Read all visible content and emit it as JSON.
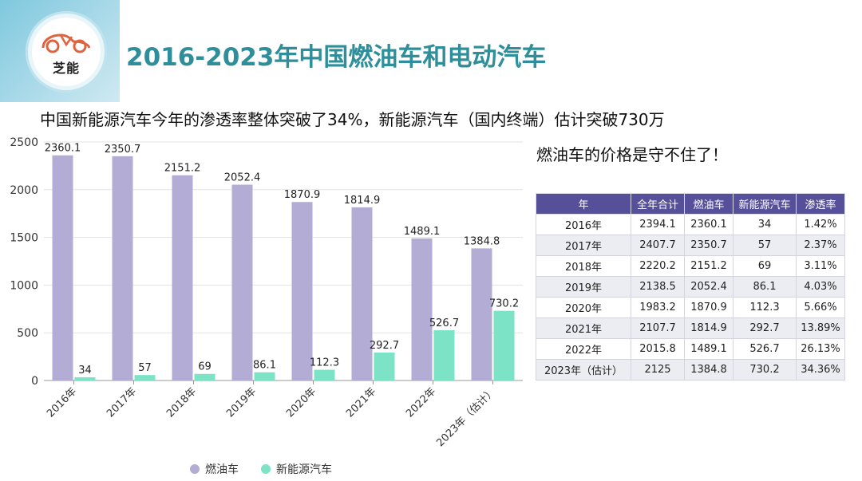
{
  "header": {
    "logo_text": "芝能",
    "title": "2016-2023年中国燃油车和电动汽车"
  },
  "subtitles": {
    "line1": "中国新能源汽车今年的渗透率整体突破了34%，新能源汽车（国内终端）估计突破730万",
    "line2": "燃油车的价格是守不住了！"
  },
  "colors": {
    "title": "#2e8f9b",
    "fuel": "#b3add6",
    "ev": "#7ce3c6",
    "table_header": "#56509a"
  },
  "chart_data": {
    "type": "bar",
    "categories": [
      "2016年",
      "2017年",
      "2018年",
      "2019年",
      "2020年",
      "2021年",
      "2022年",
      "2023年（估计）"
    ],
    "series": [
      {
        "name": "燃油车",
        "values": [
          2360.1,
          2350.7,
          2151.2,
          2052.4,
          1870.9,
          1814.9,
          1489.1,
          1384.8
        ]
      },
      {
        "name": "新能源汽车",
        "values": [
          34,
          57,
          69,
          86.1,
          112.3,
          292.7,
          526.7,
          730.2
        ]
      }
    ],
    "y_ticks": [
      0,
      500,
      1000,
      1500,
      2000,
      2500
    ],
    "ylim": [
      0,
      2500
    ],
    "grid": true,
    "legend": "bottom-center"
  },
  "table": {
    "headers": [
      "年",
      "全年合计",
      "燃油车",
      "新能源汽车",
      "渗透率"
    ],
    "rows": [
      [
        "2016年",
        "2394.1",
        "2360.1",
        "34",
        "1.42%"
      ],
      [
        "2017年",
        "2407.7",
        "2350.7",
        "57",
        "2.37%"
      ],
      [
        "2018年",
        "2220.2",
        "2151.2",
        "69",
        "3.11%"
      ],
      [
        "2019年",
        "2138.5",
        "2052.4",
        "86.1",
        "4.03%"
      ],
      [
        "2020年",
        "1983.2",
        "1870.9",
        "112.3",
        "5.66%"
      ],
      [
        "2021年",
        "2107.7",
        "1814.9",
        "292.7",
        "13.89%"
      ],
      [
        "2022年",
        "2015.8",
        "1489.1",
        "526.7",
        "26.13%"
      ],
      [
        "2023年（估计）",
        "2125",
        "1384.8",
        "730.2",
        "34.36%"
      ]
    ]
  }
}
